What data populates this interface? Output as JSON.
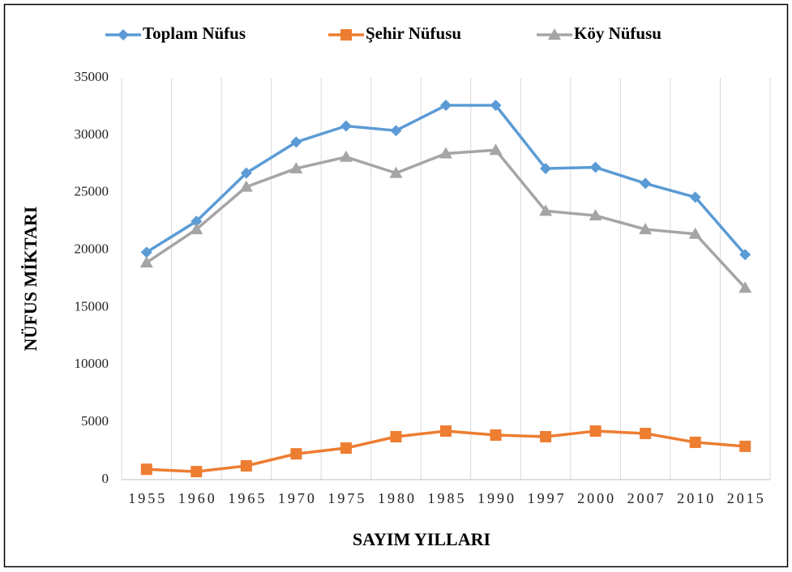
{
  "chart_data": {
    "type": "line",
    "x_label": "SAYIM YILLARI",
    "y_label": "NÜFUS MİKTARI",
    "categories": [
      "1955",
      "1960",
      "1965",
      "1970",
      "1975",
      "1980",
      "1985",
      "1990",
      "1997",
      "2000",
      "2007",
      "2010",
      "2015"
    ],
    "series": [
      {
        "name": "Toplam Nüfus",
        "color": "#5b9bd5",
        "marker": "diamond",
        "values": [
          19800,
          22500,
          26700,
          29400,
          30800,
          30400,
          32600,
          32600,
          27100,
          27200,
          25800,
          24600,
          19600
        ]
      },
      {
        "name": "Şehir Nüfusu",
        "color": "#ed7d31",
        "marker": "square",
        "values": [
          900,
          700,
          1200,
          2250,
          2750,
          3740,
          4230,
          3880,
          3740,
          4230,
          4020,
          3250,
          2900
        ]
      },
      {
        "name": "Köy Nüfusu",
        "color": "#a5a5a5",
        "marker": "triangle",
        "values": [
          18900,
          21800,
          25500,
          27100,
          28100,
          26700,
          28400,
          28700,
          23400,
          23000,
          21800,
          21400,
          16700
        ]
      }
    ],
    "ylim": [
      0,
      35000
    ],
    "yticks": [
      0,
      5000,
      10000,
      15000,
      20000,
      25000,
      30000,
      35000
    ],
    "grid": "vertical",
    "legend": "top"
  }
}
